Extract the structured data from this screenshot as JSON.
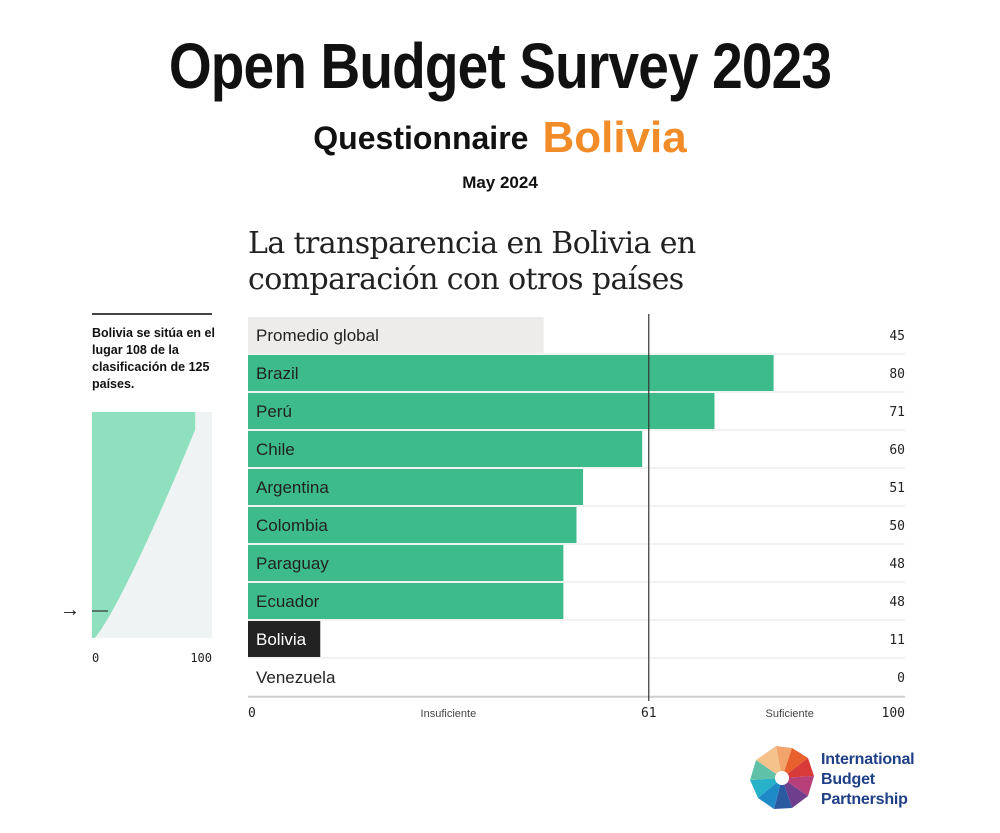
{
  "header": {
    "title": "Open Budget Survey 2023",
    "subtitle_label": "Questionnaire",
    "country": "Bolivia",
    "date": "May 2024"
  },
  "chart_title": "La transparencia en Bolivia en comparación con otros países",
  "rank_note": "Bolivia se sitúa en el lugar 108 de la clasificación de 125 países.",
  "mini_chart": {
    "arrow": "→",
    "x_tick_min": "0",
    "x_tick_max": "100"
  },
  "logo": {
    "line1": "International",
    "line2": "Budget",
    "line3": "Partnership"
  },
  "colors": {
    "bar_green": "#3dbb8a",
    "bar_gray": "#eeecea",
    "bar_dark": "#222222",
    "mini_green": "#8fe0bf",
    "mini_bg": "#f0f3f4",
    "accent_orange": "#f28c28",
    "logo_blue": "#1f3f86"
  },
  "chart_data": {
    "type": "bar",
    "orientation": "horizontal",
    "categories": [
      "Promedio global",
      "Brazil",
      "Perú",
      "Chile",
      "Argentina",
      "Colombia",
      "Paraguay",
      "Ecuador",
      "Bolivia",
      "Venezuela"
    ],
    "values": [
      45,
      80,
      71,
      60,
      51,
      50,
      48,
      48,
      11,
      0
    ],
    "value_labels": [
      "45",
      "80",
      "71",
      "60",
      "51",
      "50",
      "48",
      "48",
      "11",
      "0"
    ],
    "bar_styles": [
      "global-average",
      "country",
      "country",
      "country",
      "country",
      "country",
      "country",
      "country",
      "highlight",
      "country"
    ],
    "xlim": [
      0,
      100
    ],
    "x_ticks": [
      "0",
      "61",
      "100"
    ],
    "threshold": 61,
    "threshold_left_label": "Insuficiente",
    "threshold_right_label": "Suficiente",
    "grid": false
  }
}
